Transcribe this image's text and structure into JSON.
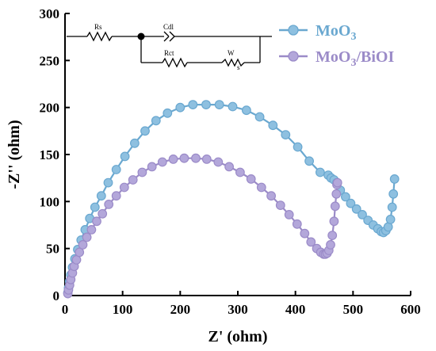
{
  "chart_data": {
    "type": "scatter",
    "xlabel": "Z' (ohm)",
    "ylabel": "-Z'' (ohm)",
    "xlim": [
      0,
      600
    ],
    "ylim": [
      0,
      300
    ],
    "x_ticks": [
      "0",
      "100",
      "200",
      "300",
      "400",
      "500",
      "600"
    ],
    "y_ticks": [
      "0",
      "50",
      "100",
      "150",
      "200",
      "250",
      "300"
    ],
    "grid": false,
    "legend_position": "top-right",
    "series": [
      {
        "name_base": "MoO",
        "name_sub": "3",
        "name_rest": "",
        "color": "#6aa8d0",
        "marker_fill": "#8ec0e0",
        "x": [
          5,
          6,
          8,
          10,
          13,
          17,
          22,
          28,
          35,
          43,
          52,
          63,
          75,
          89,
          104,
          121,
          139,
          158,
          178,
          200,
          222,
          245,
          268,
          291,
          315,
          338,
          361,
          383,
          404,
          424,
          443,
          457,
          462,
          467,
          472,
          478,
          487,
          496,
          506,
          516,
          526,
          535,
          543,
          549,
          553,
          557,
          561,
          565,
          568,
          570,
          572
        ],
        "y": [
          3,
          8,
          15,
          22,
          30,
          39,
          49,
          59,
          70,
          82,
          94,
          106,
          120,
          134,
          148,
          162,
          175,
          186,
          194,
          200,
          203,
          203,
          203,
          201,
          197,
          190,
          181,
          171,
          158,
          143,
          131,
          128,
          125,
          123,
          120,
          112,
          105,
          98,
          92,
          86,
          80,
          75,
          71,
          68,
          67,
          69,
          73,
          81,
          94,
          108,
          124
        ]
      },
      {
        "name_base": "MoO",
        "name_sub": "3",
        "name_rest": "/BiOI",
        "color": "#9b8bc8",
        "marker_fill": "#b3a7da",
        "x": [
          5,
          6,
          8,
          10,
          13,
          16,
          20,
          25,
          31,
          38,
          46,
          55,
          65,
          76,
          89,
          103,
          118,
          134,
          151,
          169,
          188,
          207,
          227,
          246,
          266,
          285,
          304,
          323,
          341,
          358,
          374,
          389,
          403,
          416,
          427,
          437,
          444,
          449,
          452,
          455,
          458,
          461,
          464,
          467,
          469,
          471,
          472,
          473
        ],
        "y": [
          2,
          6,
          11,
          17,
          24,
          31,
          38,
          46,
          54,
          62,
          70,
          79,
          87,
          97,
          106,
          115,
          123,
          131,
          137,
          142,
          145,
          146,
          146,
          145,
          142,
          137,
          131,
          124,
          115,
          106,
          96,
          86,
          76,
          66,
          57,
          50,
          46,
          44,
          44,
          45,
          48,
          54,
          64,
          79,
          95,
          108,
          118,
          120
        ]
      }
    ]
  },
  "circuit": {
    "rs_label": "Rs",
    "cdl_label": "Cdl",
    "rct_label": "Rct",
    "w_label": "W",
    "w_sub": "s"
  }
}
